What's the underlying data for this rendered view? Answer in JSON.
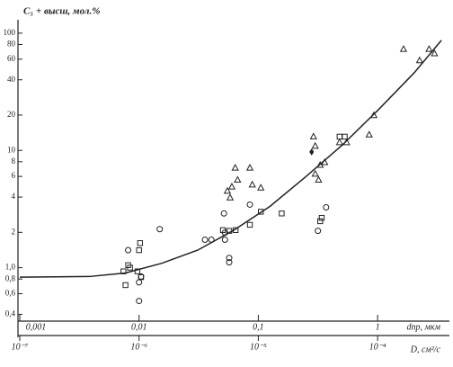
{
  "chart_data": {
    "type": "scatter",
    "ylabel": "C₅ + высш, мол.%",
    "xlabel": "dпр, мкм",
    "x2label": "D, см²/с",
    "xscale": "log",
    "yscale": "log",
    "xlim": [
      0.001,
      4
    ],
    "ylim": [
      0.35,
      130
    ],
    "x2lim": [
      1e-07,
      0.0004
    ],
    "xticks": [
      {
        "value": 0.001,
        "label": "0,001"
      },
      {
        "value": 0.01,
        "label": "0,01"
      },
      {
        "value": 0.1,
        "label": "0,1"
      },
      1
    ],
    "x2ticks": [
      {
        "value": 1e-07,
        "label": "10⁻⁷"
      },
      {
        "value": 1e-06,
        "label": "10⁻⁶"
      },
      {
        "value": 1e-05,
        "label": "10⁻⁵"
      },
      {
        "value": 0.0001,
        "label": "10⁻⁴"
      }
    ],
    "yticks": [
      100,
      80,
      60,
      40,
      20,
      10,
      8,
      6,
      4,
      2,
      {
        "value": 1,
        "label": "1,0"
      },
      {
        "value": 0.8,
        "label": "0,8"
      },
      {
        "value": 0.6,
        "label": "0,6"
      },
      {
        "value": 0.4,
        "label": "0,4"
      }
    ],
    "color": "#222222",
    "series": [
      {
        "marker": "circle",
        "x": [
          0.0081,
          0.01,
          0.0104,
          0.01,
          0.0149,
          0.0357,
          0.0404,
          0.0515,
          0.0525,
          0.0525,
          0.057,
          0.057,
          0.085,
          0.316,
          0.37
        ],
        "values": [
          1.41,
          0.52,
          0.84,
          0.75,
          2.13,
          1.73,
          1.73,
          2.9,
          1.99,
          1.73,
          1.21,
          1.11,
          3.45,
          2.06,
          3.27
        ]
      },
      {
        "marker": "square",
        "x": [
          0.0074,
          0.0081,
          0.0084,
          0.0077,
          0.01,
          0.0102,
          0.0097,
          0.0104,
          0.0505,
          0.057,
          0.0645,
          0.085,
          0.105,
          0.157,
          0.34,
          0.33,
          0.48,
          0.53
        ],
        "values": [
          0.93,
          1.05,
          1.0,
          0.71,
          1.41,
          1.62,
          0.93,
          0.83,
          2.09,
          2.06,
          2.09,
          2.32,
          3.0,
          2.9,
          2.66,
          2.49,
          13.1,
          13.1
        ]
      },
      {
        "marker": "triangle",
        "x": [
          0.064,
          0.055,
          0.06,
          0.067,
          0.058,
          0.085,
          0.089,
          0.105,
          0.29,
          0.3,
          0.3,
          0.33,
          0.32,
          0.36,
          0.48,
          0.55,
          0.85,
          0.93,
          1.65,
          2.25,
          2.7,
          3.0
        ],
        "values": [
          7.1,
          4.5,
          4.9,
          5.6,
          3.95,
          7.1,
          5.1,
          4.8,
          13.1,
          10.9,
          6.3,
          7.5,
          5.6,
          7.9,
          11.7,
          11.7,
          13.6,
          19.9,
          73,
          58.5,
          73,
          67
        ]
      },
      {
        "marker": "diamond",
        "x": [
          0.28
        ],
        "values": [
          9.7
        ]
      },
      {
        "marker": "line",
        "x": [
          0.001,
          0.00383,
          0.0077,
          0.0155,
          0.031,
          0.0624,
          0.125,
          0.25,
          0.505,
          1.01,
          2.03,
          3.43
        ],
        "values": [
          0.83,
          0.84,
          0.9,
          1.09,
          1.41,
          2.09,
          3.33,
          5.97,
          11.1,
          22.1,
          46,
          87
        ]
      }
    ]
  }
}
